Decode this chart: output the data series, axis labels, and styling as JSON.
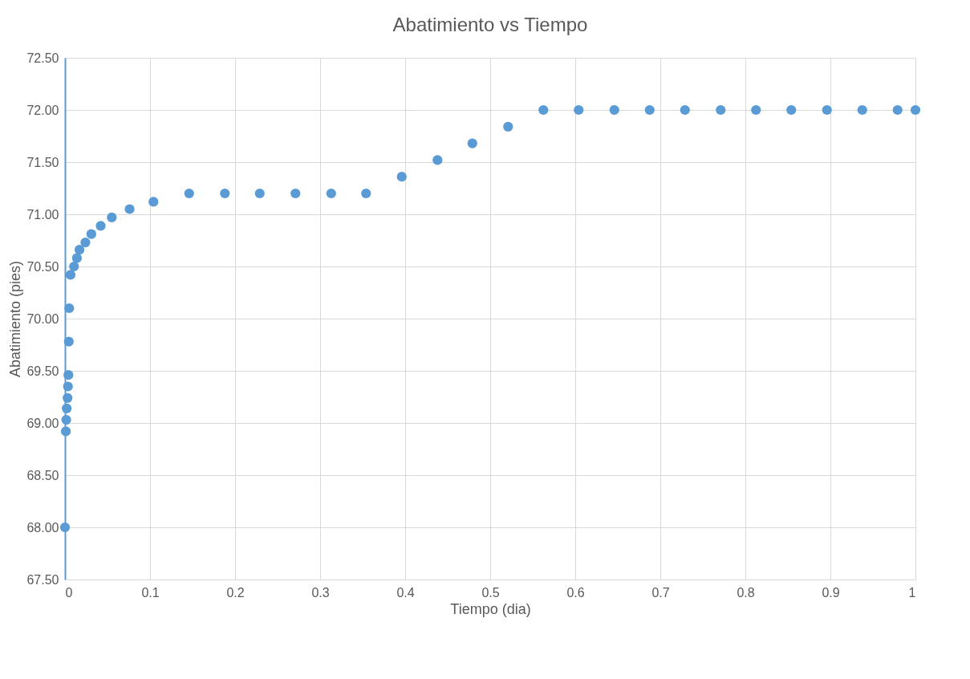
{
  "chart_data": {
    "type": "scatter",
    "title": "Abatimiento vs Tiempo",
    "xlabel": "Tiempo (dia)",
    "ylabel": "Abatimiento  (pies)",
    "x": [
      0,
      0.001,
      0.0015,
      0.002,
      0.003,
      0.0035,
      0.004,
      0.0045,
      0.005,
      0.0065,
      0.0106,
      0.014,
      0.017,
      0.024,
      0.031,
      0.042,
      0.055,
      0.076,
      0.104,
      0.146,
      0.188,
      0.229,
      0.271,
      0.313,
      0.354,
      0.396,
      0.438,
      0.479,
      0.521,
      0.5625,
      0.604,
      0.646,
      0.6875,
      0.729,
      0.771,
      0.8125,
      0.854,
      0.896,
      0.9375,
      0.979,
      1.0
    ],
    "series": [
      {
        "color": "#5b9bd5",
        "values": [
          68.0,
          68.92,
          69.03,
          69.14,
          69.24,
          69.35,
          69.46,
          69.78,
          70.1,
          70.42,
          70.5,
          70.58,
          70.66,
          70.73,
          70.81,
          70.89,
          70.97,
          71.05,
          71.12,
          71.2,
          71.2,
          71.2,
          71.2,
          71.2,
          71.2,
          71.36,
          71.52,
          71.68,
          71.84,
          72.0,
          72.0,
          72.0,
          72.0,
          72.0,
          72.0,
          72.0,
          72.0,
          72.0,
          72.0,
          72.0,
          72.0
        ]
      }
    ],
    "xlim": [
      0,
      1
    ],
    "xticks": [
      0,
      0.1,
      0.2,
      0.3,
      0.4,
      0.5,
      0.6,
      0.7,
      0.8,
      0.9,
      1
    ],
    "ylim": [
      67.5,
      72.5
    ],
    "yticks": [
      {
        "value": 67.5,
        "label": "67.50"
      },
      {
        "value": 68,
        "label": "68.00"
      },
      {
        "value": 68.5,
        "label": "68.50"
      },
      {
        "value": 69,
        "label": "69.00"
      },
      {
        "value": 69.5,
        "label": "69.50"
      },
      {
        "value": 70,
        "label": "70.00"
      },
      {
        "value": 70.5,
        "label": "70.50"
      },
      {
        "value": 71,
        "label": "71.00"
      },
      {
        "value": 71.5,
        "label": "71.50"
      },
      {
        "value": 72,
        "label": "72.00"
      },
      {
        "value": 72.5,
        "label": "72.50"
      }
    ],
    "grid": true,
    "marker": "circle",
    "legend": false
  }
}
